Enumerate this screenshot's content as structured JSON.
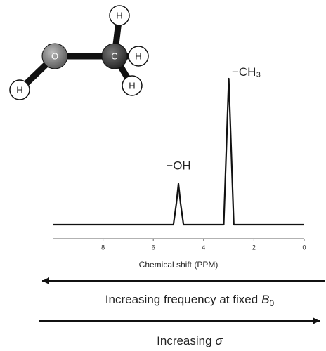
{
  "molecule": {
    "atoms": [
      "O",
      "C",
      "H",
      "H",
      "H",
      "H"
    ]
  },
  "chart_data": {
    "type": "line",
    "x": [
      10,
      5.2,
      5.08,
      5.0,
      4.92,
      4.8,
      3.2,
      3.08,
      3.0,
      2.92,
      2.8,
      0
    ],
    "values": [
      0,
      0,
      0.15,
      0.28,
      0.15,
      0,
      0,
      0.6,
      1,
      0.6,
      0,
      0
    ],
    "color": "#111111",
    "xlim": [
      10,
      0
    ],
    "xticks": [
      8,
      6,
      4,
      2,
      0
    ],
    "ylim": [
      0,
      1
    ],
    "x_label": "Chemical shift (PPM)",
    "annotations": [
      {
        "text": "−OH",
        "x": 5,
        "y": 0.4
      },
      {
        "text": "−CH₃",
        "x": 2.3,
        "y": 1.04
      }
    ],
    "arrows": [
      {
        "text": "Increasing frequency at fixed",
        "symbol": "B",
        "subscript": "0",
        "direction": "left"
      },
      {
        "text": "Increasing",
        "symbol": "σ",
        "direction": "right"
      }
    ]
  }
}
